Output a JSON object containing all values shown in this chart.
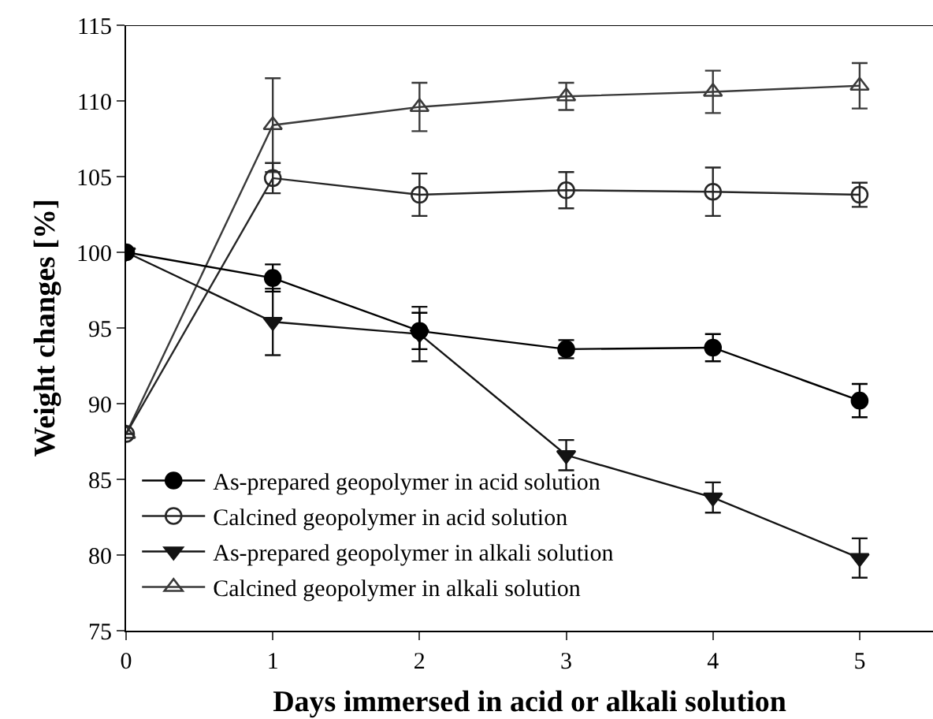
{
  "chart_data": {
    "type": "line",
    "xlabel": "Days immersed in acid or alkali solution",
    "ylabel": "Weight changes [%]",
    "x": [
      0,
      1,
      2,
      3,
      4,
      5
    ],
    "xlim": [
      0,
      5.5
    ],
    "xticks": [
      0,
      1,
      2,
      3,
      4,
      5
    ],
    "ylim": [
      75,
      115
    ],
    "yticks": [
      75,
      80,
      85,
      90,
      95,
      100,
      105,
      110,
      115
    ],
    "legend": "bottom left",
    "line_style": "solid",
    "series": [
      {
        "name": "As-prepared geopolymer in acid solution",
        "color": "#000000",
        "marker": "circle",
        "values": [
          100,
          98.3,
          94.8,
          93.6,
          93.7,
          90.2
        ],
        "errors": [
          null,
          0.9,
          1.2,
          0.6,
          0.9,
          1.1
        ]
      },
      {
        "name": "Calcined geopolymer in acid solution",
        "color": "#262626",
        "marker": "circle-open",
        "values": [
          88,
          104.9,
          103.8,
          104.1,
          104.0,
          103.8
        ],
        "errors": [
          null,
          1.0,
          1.4,
          1.2,
          1.6,
          0.8
        ]
      },
      {
        "name": "As-prepared geopolymer in alkali solution",
        "color": "#131313",
        "marker": "triangle-down",
        "values": [
          100,
          95.4,
          94.6,
          86.6,
          83.8,
          79.8
        ],
        "errors": [
          null,
          2.2,
          1.8,
          1.0,
          1.0,
          1.3
        ]
      },
      {
        "name": "Calcined geopolymer in alkali solution",
        "color": "#3a3a3a",
        "marker": "triangle-open",
        "values": [
          88,
          108.4,
          109.6,
          110.3,
          110.6,
          111.0
        ],
        "errors": [
          null,
          3.1,
          1.6,
          0.9,
          1.4,
          1.5
        ]
      }
    ]
  }
}
